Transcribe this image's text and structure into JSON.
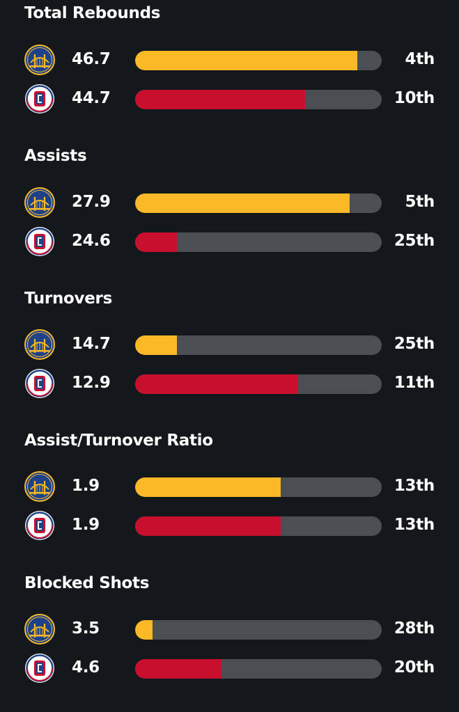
{
  "colors": {
    "background": "#15181b",
    "track": "#4a4f54",
    "warriors": "#fbb928",
    "clippers": "#c8102e"
  },
  "teams": [
    {
      "icon": "warriors-logo-icon",
      "color": "#fbb928"
    },
    {
      "icon": "clippers-logo-icon",
      "color": "#c8102e"
    }
  ],
  "stats": [
    {
      "title": "Total Rebounds",
      "rows": [
        {
          "team": "warriors",
          "value": "46.7",
          "rank": "4th",
          "fill": 0.9
        },
        {
          "team": "clippers",
          "value": "44.7",
          "rank": "10th",
          "fill": 0.69
        }
      ]
    },
    {
      "title": "Assists",
      "rows": [
        {
          "team": "warriors",
          "value": "27.9",
          "rank": "5th",
          "fill": 0.87
        },
        {
          "team": "clippers",
          "value": "24.6",
          "rank": "25th",
          "fill": 0.17
        }
      ]
    },
    {
      "title": "Turnovers",
      "rows": [
        {
          "team": "warriors",
          "value": "14.7",
          "rank": "25th",
          "fill": 0.17
        },
        {
          "team": "clippers",
          "value": "12.9",
          "rank": "11th",
          "fill": 0.66
        }
      ]
    },
    {
      "title": "Assist/Turnover Ratio",
      "rows": [
        {
          "team": "warriors",
          "value": "1.9",
          "rank": "13th",
          "fill": 0.59
        },
        {
          "team": "clippers",
          "value": "1.9",
          "rank": "13th",
          "fill": 0.59
        }
      ]
    },
    {
      "title": "Blocked Shots",
      "rows": [
        {
          "team": "warriors",
          "value": "3.5",
          "rank": "28th",
          "fill": 0.07
        },
        {
          "team": "clippers",
          "value": "4.6",
          "rank": "20th",
          "fill": 0.35
        }
      ]
    }
  ]
}
